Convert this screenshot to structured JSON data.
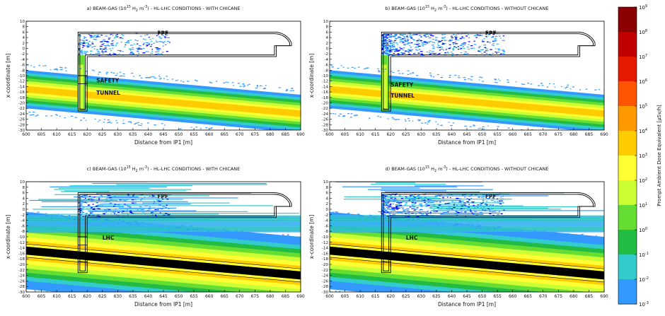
{
  "chart_data": {
    "type": "heatmap",
    "panels": [
      {
        "id": "a",
        "title_prefix": "a) BEAM-GAS (10",
        "title_exp": "15",
        "title_mid": " H",
        "title_sub": "2",
        "title_mid2": " m",
        "title_exp2": "-3",
        "title_suffix": ") - HL-LHC CONDITIONS - WITH CHICANE",
        "xlabel": "Distance from IP1 [m]",
        "ylabel": "x-coordinate [m]",
        "labels": [
          {
            "text": "FPF",
            "x": 643,
            "y": 5
          },
          {
            "text": "SAFETY",
            "x": 623,
            "y": -12.5
          },
          {
            "text": "TUNNEL",
            "x": 623,
            "y": -17
          }
        ],
        "beamline": false,
        "chicane": true,
        "dense": "tunnel"
      },
      {
        "id": "b",
        "title_prefix": "b) BEAM-GAS (10",
        "title_exp": "15",
        "title_mid": " H",
        "title_sub": "2",
        "title_mid2": " m",
        "title_exp2": "-3",
        "title_suffix": ") - HL-LHC CONDITIONS - WITHOUT CHICANE",
        "xlabel": "Distance from IP1 [m]",
        "ylabel": "x-coordinate [m]",
        "labels": [
          {
            "text": "FPF",
            "x": 651,
            "y": 5
          },
          {
            "text": "SAFETY",
            "x": 620,
            "y": -14
          },
          {
            "text": "TUNNEL",
            "x": 620,
            "y": -18
          }
        ],
        "beamline": false,
        "chicane": false,
        "dense": "tunnel"
      },
      {
        "id": "c",
        "title_prefix": "c) BEAM-GAS (10",
        "title_exp": "15",
        "title_mid": " H",
        "title_sub": "2",
        "title_mid2": " m",
        "title_exp2": "-3",
        "title_suffix": ") - HL-LHC CONDITIONS - WITH CHICANE",
        "xlabel": "Distance from IP1 [m]",
        "ylabel": "x-coordinate [m]",
        "labels": [
          {
            "text": "FPF",
            "x": 643,
            "y": 4
          },
          {
            "text": "LHC",
            "x": 625,
            "y": -11
          }
        ],
        "beamline": true,
        "chicane": true,
        "dense": "lhc"
      },
      {
        "id": "d",
        "title_prefix": "d) BEAM-GAS (10",
        "title_exp": "15",
        "title_mid": " H",
        "title_sub": "2",
        "title_mid2": " m",
        "title_exp2": "-3",
        "title_suffix": ") - HL-LHC CONDITIONS - WITHOUT CHICANE",
        "xlabel": "Distance from IP1 [m]",
        "ylabel": "x-coordinate [m]",
        "labels": [
          {
            "text": "FPF",
            "x": 651,
            "y": 4
          },
          {
            "text": "LHC",
            "x": 625,
            "y": -11
          }
        ],
        "beamline": true,
        "chicane": false,
        "dense": "lhc"
      }
    ],
    "x_ticks": [
      600,
      605,
      610,
      615,
      620,
      625,
      630,
      635,
      640,
      645,
      650,
      655,
      660,
      665,
      670,
      675,
      680,
      685,
      690
    ],
    "y_ticks": [
      10,
      8,
      6,
      4,
      2,
      0,
      -2,
      -4,
      -6,
      -8,
      -10,
      -12,
      -14,
      -16,
      -18,
      -20,
      -22,
      -24,
      -26,
      -28,
      -30
    ],
    "xlim": [
      600,
      690
    ],
    "ylim": [
      -30,
      10
    ],
    "colorbar": {
      "label": "Prompt Ambient Dose Equivalent [μSv/h]",
      "scale": "log",
      "ticks": [
        {
          "base": "10",
          "exp": "9"
        },
        {
          "base": "10",
          "exp": "8"
        },
        {
          "base": "10",
          "exp": "7"
        },
        {
          "base": "10",
          "exp": "6"
        },
        {
          "base": "10",
          "exp": "5"
        },
        {
          "base": "10",
          "exp": "4"
        },
        {
          "base": "10",
          "exp": "3"
        },
        {
          "base": "10",
          "exp": "2"
        },
        {
          "base": "10",
          "exp": "1"
        },
        {
          "base": "10",
          "exp": "0"
        },
        {
          "base": "10",
          "exp": "-1"
        },
        {
          "base": "10",
          "exp": "-2"
        },
        {
          "base": "10",
          "exp": "-3"
        }
      ],
      "colors_top_to_bottom": [
        "#8b0000",
        "#c00000",
        "#e61a00",
        "#ff5500",
        "#ff9900",
        "#ffcc00",
        "#ffff33",
        "#ccff33",
        "#66dd33",
        "#22bb44",
        "#33cccc",
        "#3399ff",
        "#0000ee"
      ]
    }
  }
}
